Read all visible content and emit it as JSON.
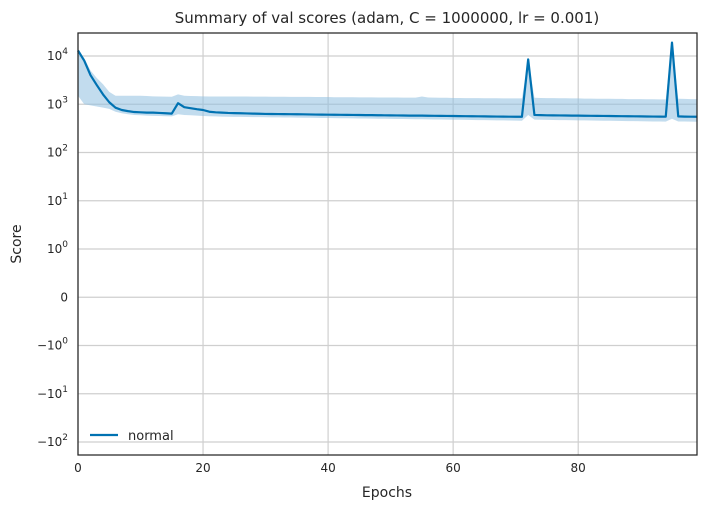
{
  "chart_data": {
    "type": "line",
    "title": "Summary of val scores (adam, C = 1000000, lr = 0.001)",
    "xlabel": "Epochs",
    "ylabel": "Score",
    "xlim": [
      0,
      99
    ],
    "yscale": "symlog",
    "x_ticks": [
      0,
      20,
      40,
      60,
      80
    ],
    "y_ticks": [
      {
        "value": 10000,
        "base": "10",
        "exp": "4"
      },
      {
        "value": 1000,
        "base": "10",
        "exp": "3"
      },
      {
        "value": 100,
        "base": "10",
        "exp": "2"
      },
      {
        "value": 10,
        "base": "10",
        "exp": "1"
      },
      {
        "value": 1,
        "base": "10",
        "exp": "0"
      },
      {
        "value": 0,
        "base": "0",
        "exp": ""
      },
      {
        "value": -1,
        "base": "−10",
        "exp": "0"
      },
      {
        "value": -10,
        "base": "−10",
        "exp": "1"
      },
      {
        "value": -100,
        "base": "−10",
        "exp": "2"
      }
    ],
    "grid": true,
    "legend_position": "bottom-left",
    "colors": {
      "line": "#0072b2",
      "band": "#8fbfe0"
    },
    "series": [
      {
        "name": "normal",
        "x": [
          0,
          1,
          2,
          3,
          4,
          5,
          6,
          7,
          8,
          9,
          10,
          11,
          12,
          13,
          14,
          15,
          16,
          17,
          18,
          19,
          20,
          21,
          22,
          23,
          24,
          25,
          26,
          27,
          28,
          29,
          30,
          31,
          32,
          33,
          34,
          35,
          36,
          37,
          38,
          39,
          40,
          41,
          42,
          43,
          44,
          45,
          46,
          47,
          48,
          49,
          50,
          51,
          52,
          53,
          54,
          55,
          56,
          57,
          58,
          59,
          60,
          61,
          62,
          63,
          64,
          65,
          66,
          67,
          68,
          69,
          70,
          71,
          72,
          73,
          74,
          75,
          76,
          77,
          78,
          79,
          80,
          81,
          82,
          83,
          84,
          85,
          86,
          87,
          88,
          89,
          90,
          91,
          92,
          93,
          94,
          95,
          96,
          97,
          98,
          99
        ],
        "values": [
          13000,
          8000,
          4000,
          2500,
          1600,
          1100,
          850,
          760,
          720,
          690,
          680,
          670,
          670,
          660,
          650,
          640,
          1050,
          870,
          830,
          790,
          760,
          700,
          680,
          670,
          660,
          655,
          650,
          645,
          640,
          635,
          630,
          628,
          626,
          624,
          622,
          620,
          618,
          615,
          612,
          610,
          608,
          606,
          604,
          602,
          600,
          598,
          596,
          594,
          592,
          590,
          588,
          586,
          584,
          582,
          580,
          580,
          578,
          576,
          574,
          572,
          570,
          568,
          566,
          564,
          562,
          560,
          558,
          556,
          554,
          552,
          550,
          550,
          8500,
          600,
          595,
          590,
          588,
          586,
          584,
          582,
          580,
          578,
          576,
          574,
          572,
          570,
          568,
          566,
          564,
          562,
          560,
          558,
          556,
          554,
          552,
          19000,
          560,
          555,
          552,
          550
        ],
        "band_upper": [
          13000,
          9000,
          5000,
          3500,
          2600,
          1800,
          1500,
          1500,
          1500,
          1500,
          1500,
          1480,
          1460,
          1450,
          1440,
          1430,
          1600,
          1500,
          1480,
          1470,
          1460,
          1450,
          1450,
          1450,
          1450,
          1450,
          1450,
          1450,
          1440,
          1440,
          1440,
          1430,
          1430,
          1430,
          1420,
          1420,
          1420,
          1420,
          1410,
          1410,
          1410,
          1400,
          1400,
          1400,
          1400,
          1390,
          1390,
          1390,
          1380,
          1380,
          1380,
          1380,
          1370,
          1370,
          1370,
          1450,
          1380,
          1370,
          1360,
          1360,
          1350,
          1350,
          1340,
          1340,
          1340,
          1330,
          1330,
          1330,
          1320,
          1320,
          1320,
          1320,
          8500,
          1360,
          1350,
          1340,
          1340,
          1330,
          1330,
          1320,
          1320,
          1310,
          1310,
          1300,
          1300,
          1300,
          1290,
          1290,
          1280,
          1280,
          1280,
          1270,
          1270,
          1260,
          1260,
          19000,
          1300,
          1290,
          1280,
          1280
        ],
        "band_lower": [
          1500,
          1000,
          950,
          900,
          850,
          800,
          700,
          650,
          620,
          600,
          590,
          580,
          575,
          570,
          565,
          560,
          620,
          600,
          590,
          580,
          570,
          565,
          560,
          555,
          550,
          548,
          546,
          544,
          542,
          540,
          538,
          536,
          534,
          532,
          530,
          528,
          526,
          524,
          522,
          520,
          518,
          516,
          514,
          512,
          510,
          508,
          506,
          504,
          502,
          500,
          498,
          496,
          494,
          492,
          490,
          488,
          486,
          484,
          482,
          480,
          478,
          476,
          474,
          472,
          470,
          468,
          466,
          464,
          462,
          460,
          458,
          456,
          600,
          480,
          476,
          474,
          472,
          470,
          468,
          466,
          464,
          462,
          460,
          458,
          456,
          454,
          452,
          450,
          448,
          446,
          444,
          442,
          440,
          438,
          436,
          500,
          440,
          438,
          436,
          434
        ]
      }
    ]
  }
}
